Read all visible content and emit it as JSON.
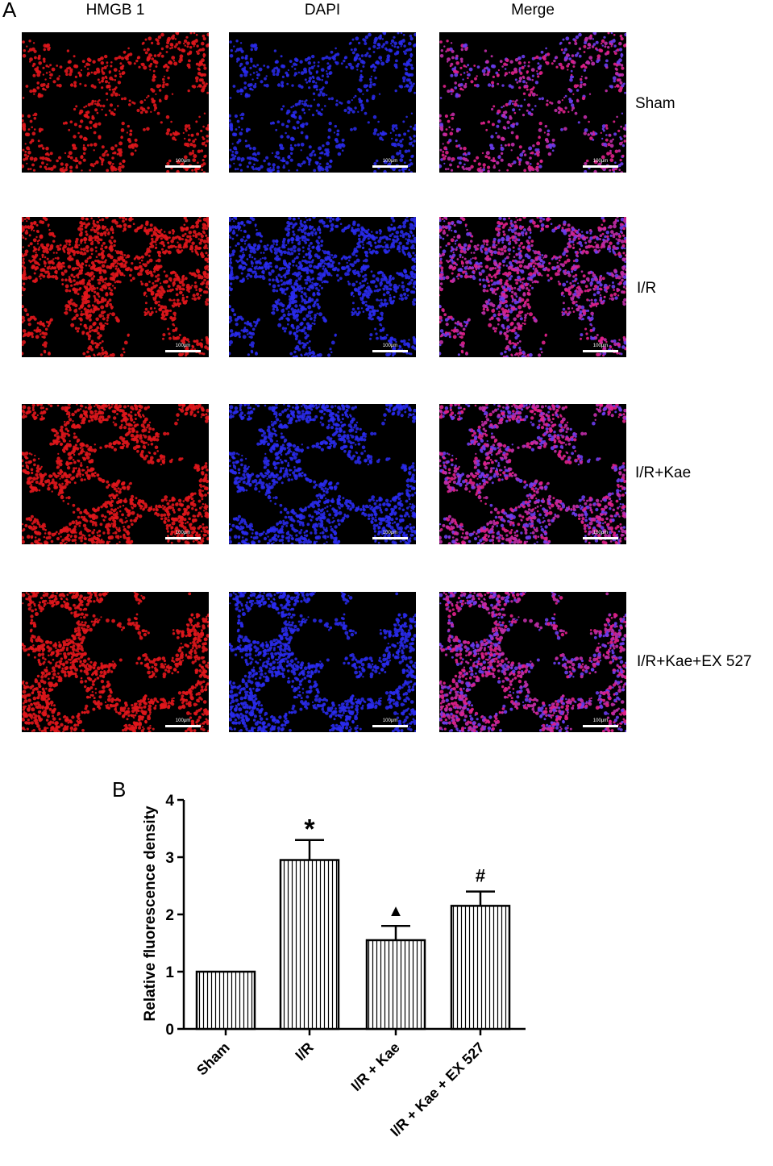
{
  "panel_a": {
    "letter": "A",
    "columns": [
      "HMGB 1",
      "DAPI",
      "Merge"
    ],
    "rows": [
      "Sham",
      "I/R",
      "I/R+Kae",
      "I/R+Kae+EX 527"
    ],
    "scale_bar_label": "100μm",
    "channel_colors": {
      "HMGB 1": "#e0161c",
      "DAPI": "#2a2cf0",
      "Merge": "#d0208c"
    }
  },
  "panel_b": {
    "letter": "B"
  },
  "chart_data": {
    "type": "bar",
    "categories": [
      "Sham",
      "I/R",
      "I/R + Kae",
      "I/R + Kae + EX 527"
    ],
    "values": [
      1.0,
      2.95,
      1.55,
      2.15
    ],
    "errors": [
      0.0,
      0.35,
      0.25,
      0.25
    ],
    "significance": [
      "",
      "*",
      "▲",
      "#"
    ],
    "ylabel": "Relative fluorescence density",
    "xlabel": "",
    "ylim": [
      0,
      4
    ],
    "yticks": [
      0,
      1,
      2,
      3,
      4
    ],
    "bar_pattern": "vertical-hatch",
    "grid": false
  }
}
